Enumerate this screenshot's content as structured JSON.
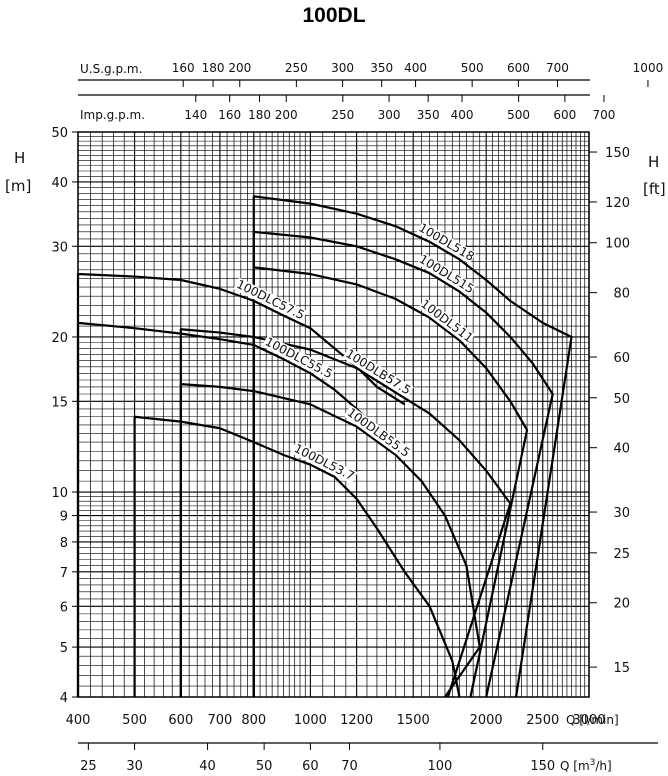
{
  "chart_data": {
    "type": "line",
    "title": "100DL",
    "x_axis": {
      "label": "Q [l/min]",
      "scale": "log",
      "range": [
        400,
        3000
      ],
      "ticks": [
        400,
        500,
        600,
        700,
        800,
        1000,
        1200,
        1500,
        2000,
        2500,
        3000
      ],
      "tick_labels": [
        "400",
        "500",
        "600",
        "700",
        "800",
        "1000",
        "1200",
        "1500",
        "2000",
        "2500",
        "3000"
      ]
    },
    "x_axis_m3h": {
      "label_prefix": "Q",
      "unit_base": "[m",
      "unit_sup": "3",
      "unit_tail": "/h]",
      "ticks": [
        25,
        30,
        40,
        50,
        60,
        70,
        100,
        150
      ],
      "tick_labels": [
        "25",
        "30",
        "40",
        "50",
        "60",
        "70",
        "100",
        "150"
      ]
    },
    "x_axis_usgpm": {
      "label": "U.S.g.p.m.",
      "ticks": [
        160,
        180,
        200,
        250,
        300,
        350,
        400,
        500,
        600,
        700,
        1000
      ],
      "tick_labels": [
        "160",
        "180",
        "200",
        "250",
        "300",
        "350",
        "400",
        "500",
        "600",
        "700",
        "1000"
      ]
    },
    "x_axis_impgpm": {
      "label": "Imp.g.p.m.",
      "ticks": [
        140,
        160,
        180,
        200,
        250,
        300,
        350,
        400,
        500,
        600,
        700
      ],
      "tick_labels": [
        "140",
        "160",
        "180",
        "200",
        "250",
        "300",
        "350",
        "400",
        "500",
        "600",
        "700"
      ]
    },
    "y_axis": {
      "label": "H",
      "unit": "[m]",
      "scale": "log",
      "range": [
        4,
        50
      ],
      "ticks": [
        4,
        5,
        6,
        7,
        8,
        9,
        10,
        15,
        20,
        30,
        40,
        50
      ],
      "tick_labels": [
        "4",
        "5",
        "6",
        "7",
        "8",
        "9",
        "10",
        "15",
        "20",
        "30",
        "40",
        "50"
      ]
    },
    "y_axis_right": {
      "label": "H",
      "unit": "[ft]",
      "ticks": [
        15,
        20,
        25,
        30,
        40,
        50,
        60,
        80,
        100,
        120,
        150
      ],
      "tick_labels": [
        "15",
        "20",
        "25",
        "30",
        "40",
        "50",
        "60",
        "80",
        "100",
        "120",
        "150"
      ]
    },
    "grid": true,
    "series": [
      {
        "name": "100DL518",
        "points": [
          [
            800,
            37.5
          ],
          [
            1000,
            36.3
          ],
          [
            1200,
            34.7
          ],
          [
            1400,
            32.8
          ],
          [
            1600,
            30.6
          ],
          [
            1800,
            28.3
          ],
          [
            2000,
            25.8
          ],
          [
            2200,
            23.5
          ],
          [
            2500,
            21.3
          ],
          [
            2800,
            20.0
          ]
        ],
        "tail": [
          [
            2250,
            4.0
          ]
        ]
      },
      {
        "name": "100DL515",
        "points": [
          [
            800,
            32.0
          ],
          [
            1000,
            31.2
          ],
          [
            1200,
            30.0
          ],
          [
            1400,
            28.3
          ],
          [
            1600,
            26.6
          ],
          [
            1800,
            24.5
          ],
          [
            2000,
            22.3
          ],
          [
            2200,
            20.0
          ],
          [
            2400,
            17.8
          ],
          [
            2600,
            15.5
          ]
        ],
        "tail": [
          [
            2000,
            4.0
          ]
        ]
      },
      {
        "name": "100DL511",
        "points": [
          [
            800,
            27.3
          ],
          [
            1000,
            26.5
          ],
          [
            1200,
            25.3
          ],
          [
            1400,
            23.7
          ],
          [
            1600,
            21.8
          ],
          [
            1800,
            19.7
          ],
          [
            2000,
            17.4
          ],
          [
            2200,
            15.0
          ],
          [
            2350,
            13.2
          ]
        ],
        "tail": [
          [
            1880,
            4.0
          ]
        ]
      },
      {
        "name": "100DLB57.5",
        "points": [
          [
            600,
            20.7
          ],
          [
            700,
            20.4
          ],
          [
            800,
            20.0
          ],
          [
            1000,
            18.9
          ],
          [
            1200,
            17.4
          ],
          [
            1400,
            15.6
          ],
          [
            1600,
            14.2
          ],
          [
            1800,
            12.6
          ],
          [
            2000,
            11.0
          ],
          [
            2200,
            9.5
          ]
        ],
        "tail": [
          [
            1720,
            4.0
          ]
        ]
      },
      {
        "name": "100DLB55.5",
        "points": [
          [
            600,
            16.2
          ],
          [
            700,
            16.0
          ],
          [
            800,
            15.7
          ],
          [
            1000,
            14.8
          ],
          [
            1200,
            13.4
          ],
          [
            1400,
            11.8
          ],
          [
            1550,
            10.5
          ],
          [
            1700,
            9.0
          ],
          [
            1850,
            7.2
          ],
          [
            1950,
            5.0
          ]
        ],
        "tail": [
          [
            1700,
            4.0
          ]
        ]
      },
      {
        "name": "100DLC57.5",
        "points": [
          [
            400,
            26.5
          ],
          [
            500,
            26.2
          ],
          [
            600,
            25.8
          ],
          [
            700,
            24.8
          ],
          [
            800,
            23.5
          ],
          [
            900,
            22.0
          ],
          [
            1000,
            20.8
          ],
          [
            1100,
            19.0
          ],
          [
            1200,
            17.5
          ],
          [
            1300,
            16.0
          ],
          [
            1450,
            14.8
          ]
        ],
        "tail": []
      },
      {
        "name": "100DLC55.5",
        "points": [
          [
            400,
            21.3
          ],
          [
            500,
            20.8
          ],
          [
            600,
            20.3
          ],
          [
            700,
            19.8
          ],
          [
            800,
            19.3
          ],
          [
            900,
            18.1
          ],
          [
            1000,
            17.0
          ],
          [
            1100,
            15.8
          ],
          [
            1200,
            14.5
          ],
          [
            1300,
            13.3
          ],
          [
            1400,
            12.3
          ],
          [
            1450,
            11.8
          ]
        ],
        "tail": []
      },
      {
        "name": "100DL53.7",
        "points": [
          [
            500,
            14.0
          ],
          [
            600,
            13.7
          ],
          [
            700,
            13.3
          ],
          [
            800,
            12.5
          ],
          [
            900,
            11.8
          ],
          [
            1000,
            11.3
          ],
          [
            1100,
            10.7
          ],
          [
            1200,
            9.7
          ],
          [
            1300,
            8.5
          ],
          [
            1450,
            7.0
          ],
          [
            1600,
            6.0
          ],
          [
            1750,
            4.7
          ],
          [
            1800,
            4.0
          ]
        ],
        "tail": []
      }
    ]
  },
  "curve_label_positions": {}
}
